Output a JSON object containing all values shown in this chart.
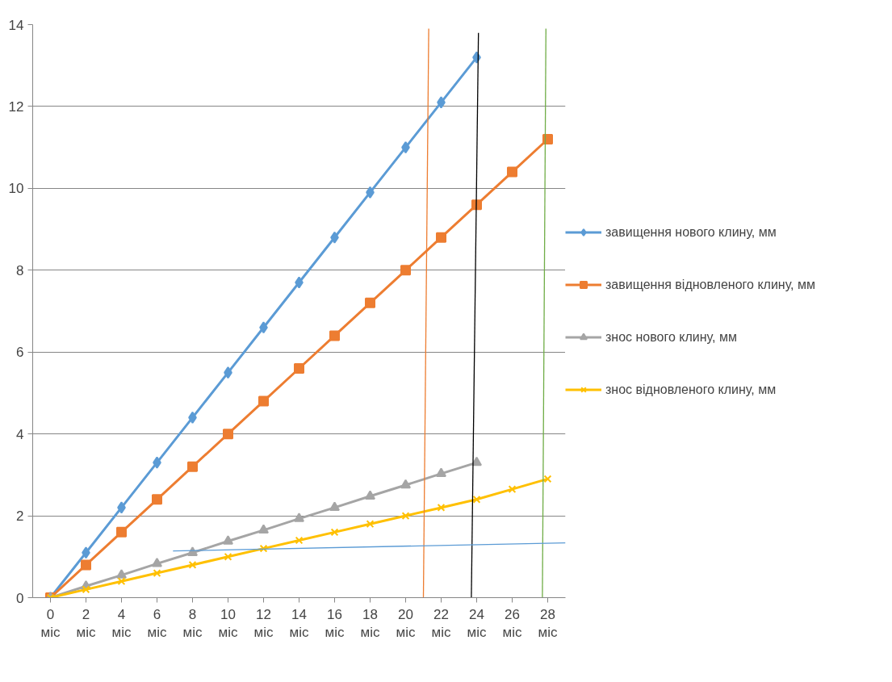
{
  "chart_data": {
    "type": "line",
    "x": [
      0,
      2,
      4,
      6,
      8,
      10,
      12,
      14,
      16,
      18,
      20,
      22,
      24,
      26,
      28
    ],
    "xlim": [
      -1,
      29
    ],
    "xticks": [
      {
        "value": 0,
        "label": "0 міс"
      },
      {
        "value": 2,
        "label": "2 міс"
      },
      {
        "value": 4,
        "label": "4 міс"
      },
      {
        "value": 6,
        "label": "6 міс"
      },
      {
        "value": 8,
        "label": "8 міс"
      },
      {
        "value": 10,
        "label": "10 міс"
      },
      {
        "value": 12,
        "label": "12 міс"
      },
      {
        "value": 14,
        "label": "14 міс"
      },
      {
        "value": 16,
        "label": "16 міс"
      },
      {
        "value": 18,
        "label": "18 міс"
      },
      {
        "value": 20,
        "label": "20 міс"
      },
      {
        "value": 22,
        "label": "22 міс"
      },
      {
        "value": 24,
        "label": "24 міс"
      },
      {
        "value": 26,
        "label": "26 міс"
      },
      {
        "value": 28,
        "label": "28 міс"
      }
    ],
    "ylim": [
      0,
      14
    ],
    "yticks": [
      0,
      2,
      4,
      6,
      8,
      10,
      12,
      14
    ],
    "grid": "y",
    "legend": "right",
    "series": [
      {
        "name": "завищення нового клину, мм",
        "color": "#5b9bd5",
        "marker": "diamond",
        "values": [
          0,
          1.1,
          2.2,
          3.3,
          4.4,
          5.5,
          6.6,
          7.7,
          8.8,
          9.9,
          11,
          12.1,
          13.2,
          null,
          null
        ]
      },
      {
        "name": "завищення відновленого клину, мм",
        "color": "#ed7d31",
        "marker": "square",
        "values": [
          0,
          0.8,
          1.6,
          2.4,
          3.2,
          4.0,
          4.8,
          5.6,
          6.4,
          7.2,
          8.0,
          8.8,
          9.6,
          10.4,
          11.2
        ]
      },
      {
        "name": "знос нового клину, мм",
        "color": "#a5a5a5",
        "marker": "triangle",
        "values": [
          0,
          0.28,
          0.55,
          0.83,
          1.1,
          1.38,
          1.65,
          1.93,
          2.2,
          2.48,
          2.75,
          3.03,
          3.3,
          null,
          null
        ]
      },
      {
        "name": "знос відновленого клину, мм",
        "color": "#ffc000",
        "marker": "cross",
        "values": [
          0,
          0.2,
          0.4,
          0.6,
          0.8,
          1.0,
          1.2,
          1.4,
          1.6,
          1.8,
          2.0,
          2.2,
          2.4,
          2.65,
          2.9
        ]
      },
      {
        "color": "#ed7d31",
        "marker": "none",
        "x": [
          21.0,
          21.3
        ],
        "values": [
          0,
          13.9
        ]
      },
      {
        "color": "#000000",
        "marker": "none",
        "x": [
          23.7,
          24.1
        ],
        "values": [
          0,
          13.8
        ]
      },
      {
        "color": "#70ad47",
        "marker": "none",
        "x": [
          27.7,
          27.9
        ],
        "values": [
          0,
          13.9
        ]
      },
      {
        "color": "#5b9bd5",
        "marker": "none",
        "x": [
          6.9,
          29
        ],
        "values": [
          1.14,
          1.34
        ]
      }
    ]
  }
}
